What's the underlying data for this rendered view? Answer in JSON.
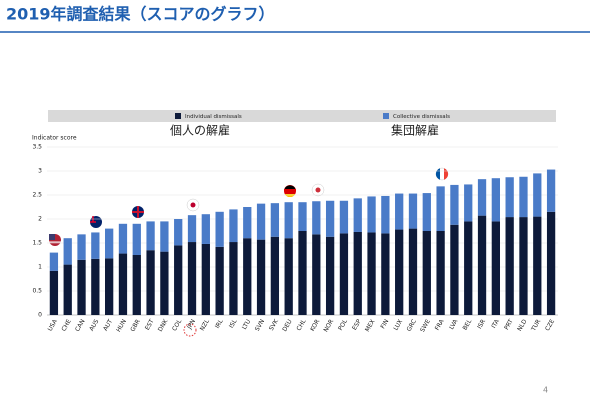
{
  "slide": {
    "title": "2019年調査結果（スコアのグラフ）",
    "page_number": 4
  },
  "chart_data": {
    "type": "stacked_bar",
    "y_label": "Indicator score",
    "annotations": [
      "個人の解雇",
      "集団解雇"
    ],
    "categories": [
      "USA",
      "CHE",
      "CAN",
      "AUS",
      "AUT",
      "HUN",
      "GBR",
      "EST",
      "DNK",
      "COL",
      "JPN",
      "NZL",
      "IRL",
      "ISL",
      "LTU",
      "SVN",
      "SVK",
      "DEU",
      "CHL",
      "KOR",
      "NOR",
      "POL",
      "ESP",
      "MEX",
      "FIN",
      "LUX",
      "GRC",
      "SWE",
      "FRA",
      "LVA",
      "BEL",
      "ISR",
      "ITA",
      "PRT",
      "NLD",
      "TUR",
      "CZE"
    ],
    "series": [
      {
        "name": "Individual dismissals",
        "color": "#0d1a3a",
        "values": [
          0.92,
          1.05,
          1.15,
          1.17,
          1.18,
          1.28,
          1.25,
          1.35,
          1.32,
          1.45,
          1.52,
          1.48,
          1.42,
          1.52,
          1.6,
          1.57,
          1.63,
          1.6,
          1.75,
          1.68,
          1.63,
          1.7,
          1.73,
          1.72,
          1.7,
          1.78,
          1.8,
          1.75,
          1.75,
          1.88,
          1.95,
          2.07,
          1.95,
          2.04,
          2.04,
          2.05,
          2.15
        ]
      },
      {
        "name": "Collective dismissals",
        "color": "#4a7bc8",
        "values": [
          0.38,
          0.55,
          0.53,
          0.55,
          0.62,
          0.62,
          0.65,
          0.6,
          0.63,
          0.55,
          0.56,
          0.62,
          0.73,
          0.68,
          0.65,
          0.75,
          0.7,
          0.75,
          0.6,
          0.69,
          0.75,
          0.68,
          0.7,
          0.75,
          0.78,
          0.75,
          0.73,
          0.79,
          0.93,
          0.83,
          0.77,
          0.76,
          0.9,
          0.83,
          0.84,
          0.9,
          0.88
        ]
      }
    ],
    "ylim": [
      0,
      3.5
    ],
    "yticks": [
      0,
      0.5,
      1,
      1.5,
      2,
      2.5,
      3,
      3.5
    ],
    "grid": true
  }
}
